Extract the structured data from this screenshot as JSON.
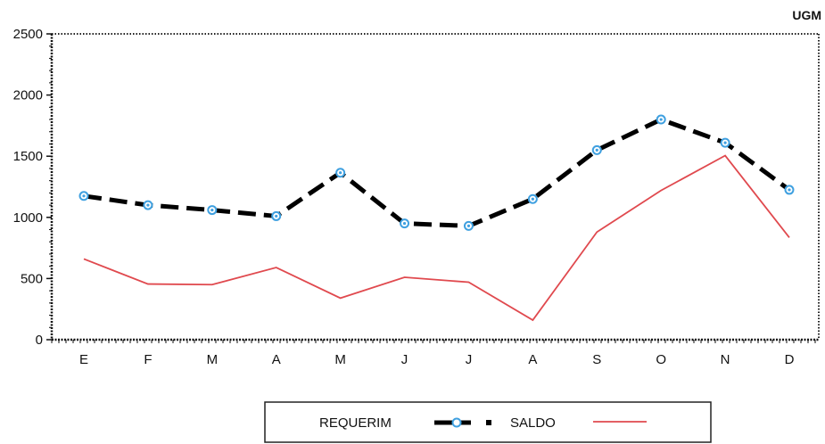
{
  "chart_data": {
    "type": "line",
    "unit_label": "UGM",
    "categories": [
      "E",
      "F",
      "M",
      "A",
      "M",
      "J",
      "J",
      "A",
      "S",
      "O",
      "N",
      "D"
    ],
    "ylim": [
      0,
      2500
    ],
    "yticks": [
      "0",
      "500",
      "1000",
      "1500",
      "2000",
      "2500"
    ],
    "ytick_values": [
      0,
      500,
      1000,
      1500,
      2000,
      2500
    ],
    "grid": false,
    "legend_position": "bottom",
    "series": [
      {
        "name": "REQUERIM",
        "values": [
          1175,
          1100,
          1060,
          1010,
          1365,
          950,
          930,
          1150,
          1550,
          1800,
          1610,
          1225
        ],
        "color": "#000000",
        "marker_color": "#3fa0e0",
        "style": "dashed-with-markers"
      },
      {
        "name": "SALDO",
        "values": [
          660,
          455,
          450,
          590,
          340,
          510,
          470,
          160,
          880,
          1220,
          1505,
          835
        ],
        "color": "#e0494e",
        "style": "solid"
      }
    ]
  }
}
